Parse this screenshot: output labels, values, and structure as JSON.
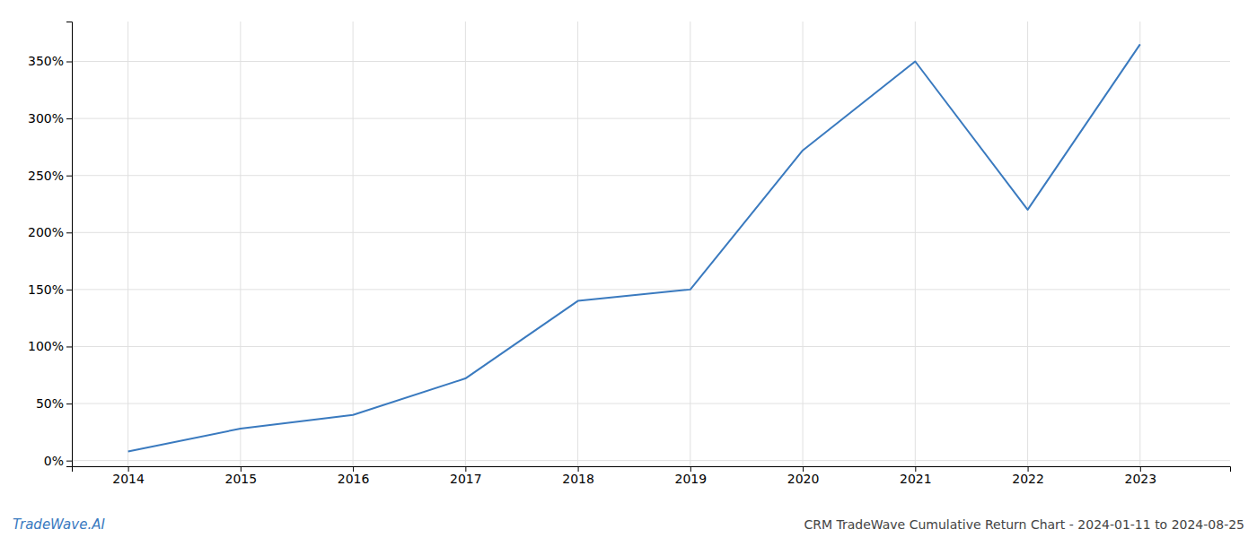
{
  "chart_data": {
    "type": "line",
    "title": "CRM TradeWave Cumulative Return Chart - 2024-01-11 to 2024-08-25",
    "annotations": [
      "TradeWave.AI"
    ],
    "x": [
      2014,
      2015,
      2016,
      2017,
      2018,
      2019,
      2020,
      2021,
      2022,
      2023
    ],
    "values": [
      0.08,
      0.28,
      0.4,
      0.72,
      1.4,
      1.5,
      2.72,
      3.5,
      2.2,
      3.65
    ],
    "color": "#3a7abf",
    "xlim": [
      2013.5,
      2023.8
    ],
    "xticks": [
      2014,
      2015,
      2016,
      2017,
      2018,
      2019,
      2020,
      2021,
      2022,
      2023
    ],
    "ylim": [
      -0.05,
      3.85
    ],
    "yticks": [
      {
        "value": 0.0,
        "label": "0%"
      },
      {
        "value": 0.5,
        "label": "50%"
      },
      {
        "value": 1.0,
        "label": "100%"
      },
      {
        "value": 1.5,
        "label": "150%"
      },
      {
        "value": 2.0,
        "label": "200%"
      },
      {
        "value": 2.5,
        "label": "250%"
      },
      {
        "value": 3.0,
        "label": "300%"
      },
      {
        "value": 3.5,
        "label": "350%"
      }
    ],
    "grid": true
  }
}
